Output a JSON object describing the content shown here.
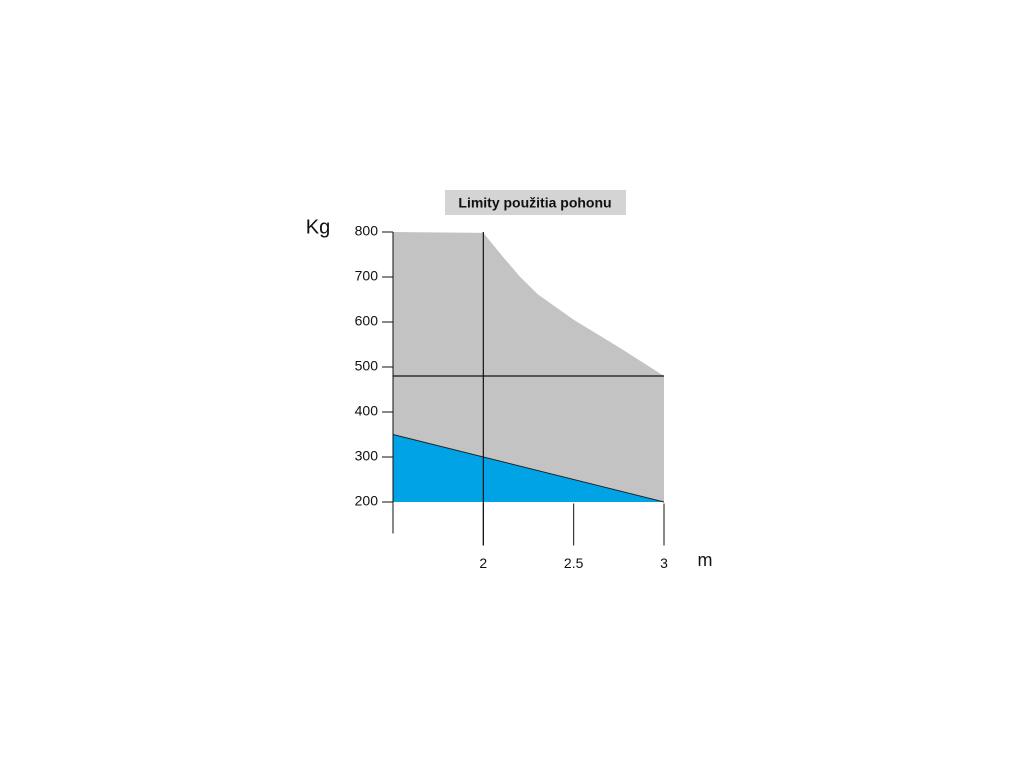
{
  "chart_data": {
    "type": "area",
    "title": "Limity použitia pohonu",
    "y_label": "Kg",
    "x_label": "m",
    "xlim": [
      1.5,
      3
    ],
    "ylim": [
      130,
      800
    ],
    "xticks": [
      2,
      2.5,
      3
    ],
    "yticks": [
      200,
      300,
      400,
      500,
      600,
      700,
      800
    ],
    "baseline": 200,
    "series": [
      {
        "color": "#c3c3c3",
        "x": [
          1.5,
          2,
          2.1,
          2.2,
          2.3,
          2.5,
          2.75,
          3
        ],
        "values": [
          800,
          798,
          749,
          702,
          662,
          605,
          544,
          480
        ]
      },
      {
        "color": "#00a3e6",
        "x": [
          1.5,
          3
        ],
        "values": [
          350,
          200
        ]
      }
    ],
    "reference_lines": {
      "x": 2,
      "y": 480
    }
  }
}
